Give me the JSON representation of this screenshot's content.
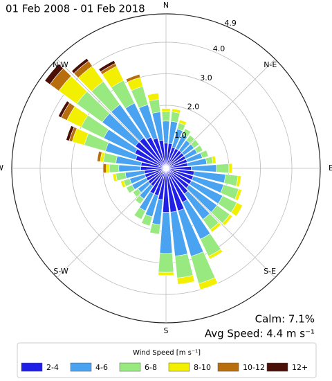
{
  "chart_data": {
    "type": "windrose",
    "title": "01 Feb 2008 - 01 Feb 2018",
    "annotations": [
      "Calm: 7.1%",
      "Avg Speed: 4.4 m s⁻¹"
    ],
    "legend_title": "Wind Speed [m s⁻¹]",
    "direction_labels": [
      "N",
      "N-E",
      "E",
      "S-E",
      "S",
      "S-W",
      "W",
      "N-W"
    ],
    "x": [
      0,
      10,
      20,
      30,
      40,
      50,
      60,
      70,
      80,
      90,
      100,
      110,
      120,
      130,
      140,
      150,
      160,
      170,
      180,
      190,
      200,
      210,
      220,
      230,
      240,
      250,
      260,
      270,
      280,
      290,
      300,
      310,
      320,
      330,
      340,
      350
    ],
    "ylim": [
      0,
      4.9
    ],
    "yticks": [
      {
        "value": 1,
        "label": "1.0"
      },
      {
        "value": 2,
        "label": "2.0"
      },
      {
        "value": 3,
        "label": "3.0"
      },
      {
        "value": 4,
        "label": "4.0"
      },
      4.9
    ],
    "grid": true,
    "series": [
      {
        "name": "2-4",
        "color": "#1f1fe8",
        "values": [
          0.8,
          0.8,
          0.7,
          0.7,
          0.7,
          0.7,
          0.7,
          0.7,
          0.7,
          0.8,
          0.9,
          0.9,
          0.9,
          0.9,
          1.0,
          1.2,
          1.4,
          1.4,
          1.4,
          1.0,
          0.9,
          0.9,
          0.7,
          0.7,
          0.7,
          0.7,
          0.7,
          0.8,
          0.8,
          1.0,
          1.1,
          1.2,
          1.2,
          1.1,
          1.0,
          0.9
        ]
      },
      {
        "name": "4-6",
        "color": "#4aa3f0",
        "values": [
          0.7,
          0.7,
          0.6,
          0.5,
          0.4,
          0.4,
          0.4,
          0.5,
          0.6,
          0.8,
          1.0,
          1.0,
          1.1,
          1.1,
          1.0,
          1.3,
          1.5,
          1.4,
          1.3,
          0.8,
          0.7,
          0.6,
          0.5,
          0.4,
          0.5,
          0.5,
          0.6,
          0.7,
          0.8,
          1.0,
          1.1,
          1.3,
          1.3,
          1.2,
          1.1,
          0.9
        ]
      },
      {
        "name": "6-8",
        "color": "#98ea80",
        "values": [
          0.3,
          0.3,
          0.2,
          0.2,
          0.2,
          0.2,
          0.2,
          0.2,
          0.2,
          0.4,
          0.4,
          0.5,
          0.5,
          0.5,
          0.4,
          0.6,
          0.9,
          0.7,
          0.6,
          0.3,
          0.3,
          0.3,
          0.2,
          0.2,
          0.2,
          0.2,
          0.3,
          0.3,
          0.4,
          0.7,
          0.8,
          1.0,
          0.9,
          0.8,
          0.6,
          0.4
        ]
      },
      {
        "name": "8-10",
        "color": "#f2f000",
        "values": [
          0.1,
          0.1,
          0.1,
          0,
          0,
          0,
          0,
          0,
          0.1,
          0.1,
          0.1,
          0.1,
          0.2,
          0.1,
          0.1,
          0.1,
          0.2,
          0.2,
          0.1,
          0,
          0,
          0,
          0,
          0,
          0,
          0.1,
          0.1,
          0.1,
          0.1,
          0.4,
          0.5,
          0.7,
          0.6,
          0.5,
          0.3,
          0.2
        ]
      },
      {
        "name": "10-12",
        "color": "#b86e0c",
        "values": [
          0,
          0,
          0,
          0,
          0,
          0,
          0,
          0,
          0,
          0,
          0,
          0,
          0,
          0,
          0,
          0,
          0,
          0,
          0,
          0,
          0,
          0,
          0,
          0,
          0,
          0,
          0,
          0.1,
          0.1,
          0.1,
          0.2,
          0.35,
          0.2,
          0.1,
          0.1,
          0
        ]
      },
      {
        "name": "12+",
        "color": "#4a1008",
        "values": [
          0,
          0,
          0,
          0,
          0,
          0,
          0,
          0,
          0,
          0,
          0,
          0,
          0,
          0,
          0,
          0,
          0,
          0,
          0,
          0,
          0,
          0,
          0,
          0,
          0,
          0,
          0,
          0,
          0,
          0.1,
          0.1,
          0.2,
          0.1,
          0.1,
          0,
          0
        ]
      }
    ]
  }
}
